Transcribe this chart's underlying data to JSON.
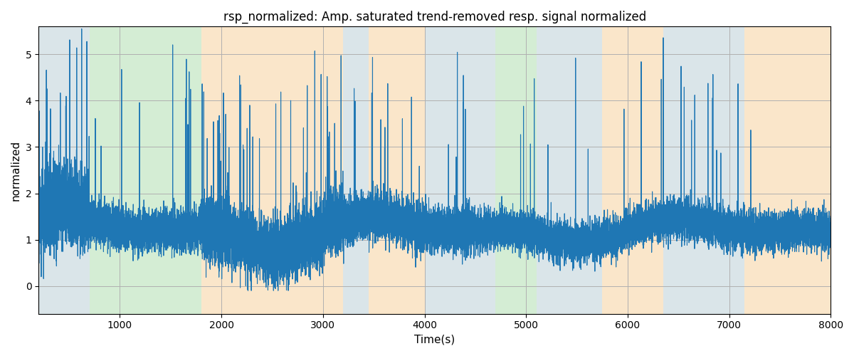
{
  "title": "rsp_normalized: Amp. saturated trend-removed resp. signal normalized",
  "xlabel": "Time(s)",
  "ylabel": "normalized",
  "xlim": [
    200,
    8000
  ],
  "ylim": [
    -0.6,
    5.6
  ],
  "yticks": [
    0,
    1,
    2,
    3,
    4,
    5
  ],
  "xticks": [
    1000,
    2000,
    3000,
    4000,
    5000,
    6000,
    7000,
    8000
  ],
  "line_color": "#1f77b4",
  "line_width": 0.8,
  "grid_color": "#b0b0b0",
  "background_color": "#ffffff",
  "bands": [
    {
      "xmin": 200,
      "xmax": 700,
      "color": "#aec6cf",
      "alpha": 0.45
    },
    {
      "xmin": 700,
      "xmax": 1800,
      "color": "#90d090",
      "alpha": 0.38
    },
    {
      "xmin": 1800,
      "xmax": 3200,
      "color": "#f5c88a",
      "alpha": 0.45
    },
    {
      "xmin": 3200,
      "xmax": 3450,
      "color": "#aec6cf",
      "alpha": 0.45
    },
    {
      "xmin": 3450,
      "xmax": 4000,
      "color": "#f5c88a",
      "alpha": 0.45
    },
    {
      "xmin": 4000,
      "xmax": 4550,
      "color": "#aec6cf",
      "alpha": 0.45
    },
    {
      "xmin": 4550,
      "xmax": 4700,
      "color": "#aec6cf",
      "alpha": 0.45
    },
    {
      "xmin": 4700,
      "xmax": 5100,
      "color": "#90d090",
      "alpha": 0.38
    },
    {
      "xmin": 5100,
      "xmax": 5750,
      "color": "#aec6cf",
      "alpha": 0.45
    },
    {
      "xmin": 5750,
      "xmax": 6350,
      "color": "#f5c88a",
      "alpha": 0.45
    },
    {
      "xmin": 6350,
      "xmax": 6700,
      "color": "#aec6cf",
      "alpha": 0.45
    },
    {
      "xmin": 6700,
      "xmax": 7150,
      "color": "#aec6cf",
      "alpha": 0.45
    },
    {
      "xmin": 7150,
      "xmax": 8000,
      "color": "#f5c88a",
      "alpha": 0.45
    }
  ],
  "seed": 2023,
  "n_points": 15600,
  "t_start": 200,
  "t_end": 8000
}
